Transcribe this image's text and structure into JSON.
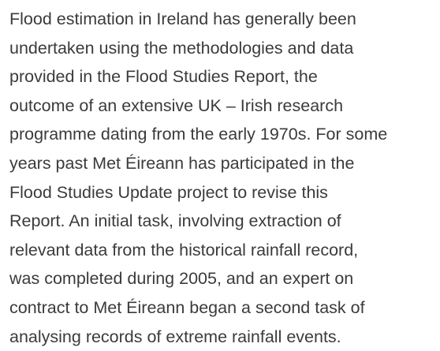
{
  "paragraph": {
    "lines": [
      "Flood estimation in Ireland has generally been",
      "undertaken using the methodologies and data",
      "provided in the Flood Studies Report, the",
      "outcome of an extensive UK – Irish research",
      "programme dating from the early 1970s. For some",
      "years past Met Éireann has participated in the",
      "Flood Studies Update project to revise this",
      "Report. An initial task, involving extraction of",
      "relevant data from the historical rainfall record,",
      "was completed during 2005, and an expert on",
      "contract to Met Éireann began a second task of",
      "analysing records of extreme rainfall events."
    ]
  }
}
